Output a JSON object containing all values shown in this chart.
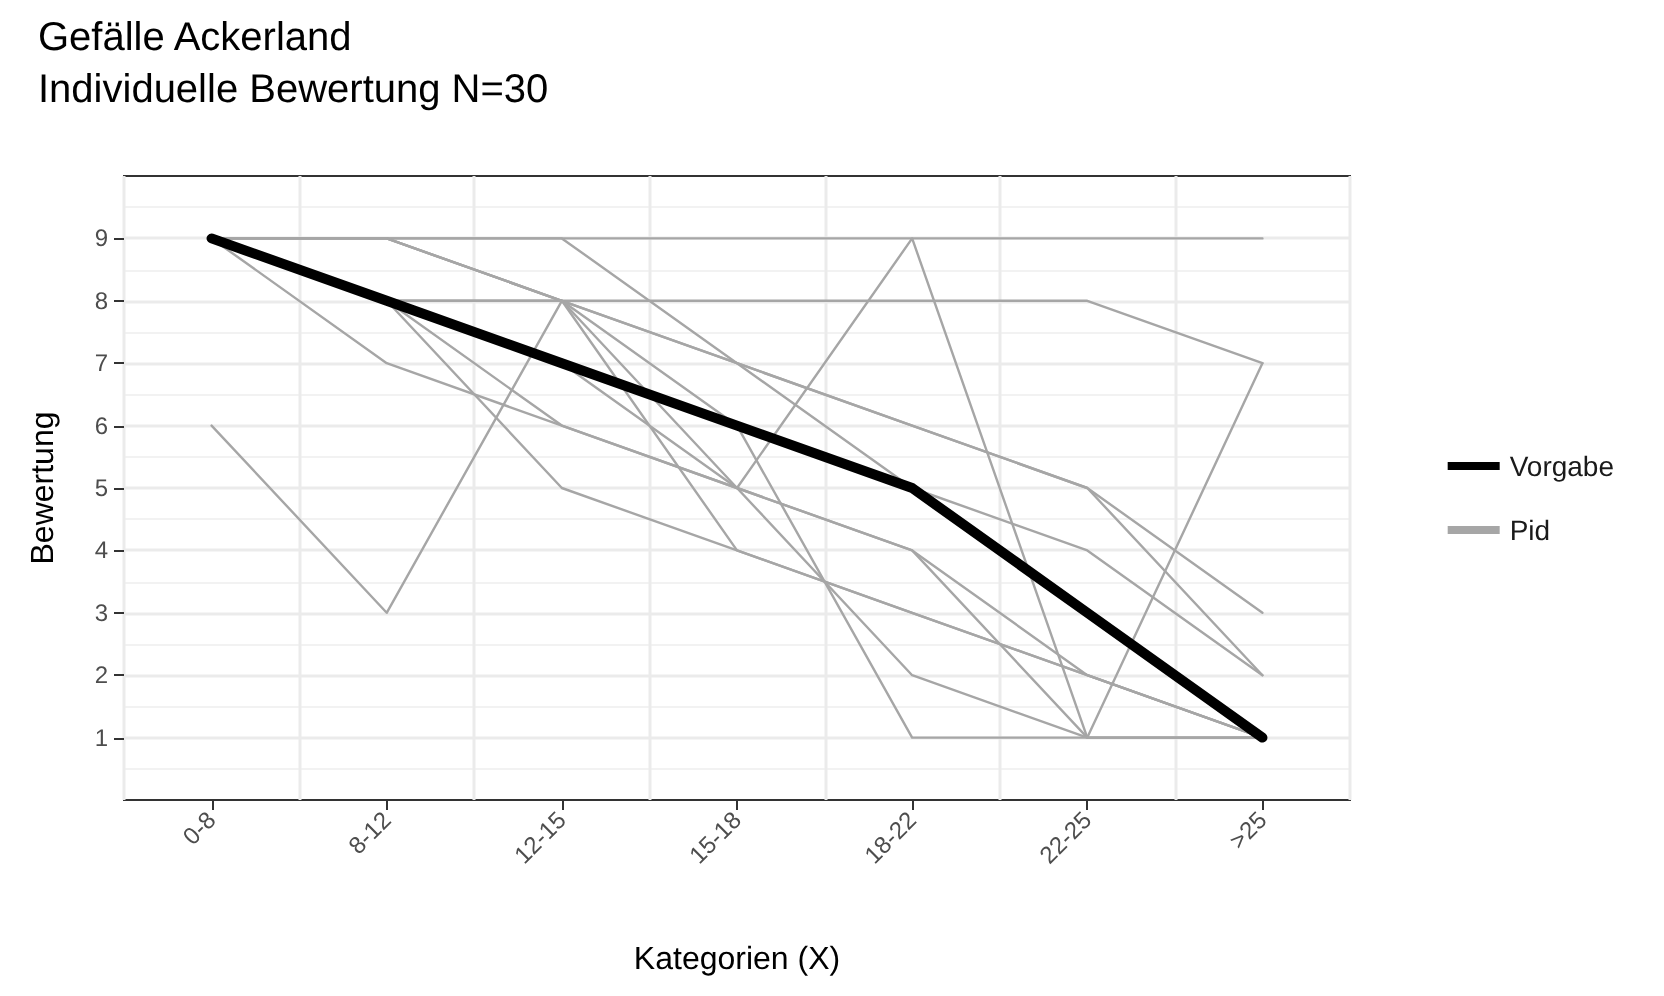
{
  "chart_data": {
    "type": "line",
    "title": "Gefälle Ackerland",
    "subtitle": "Individuelle Bewertung N=30",
    "xlabel": "Kategorien (X)",
    "ylabel": "Bewertung",
    "categories": [
      "0-8",
      "8-12",
      "12-15",
      "15-18",
      "18-22",
      "22-25",
      ">25"
    ],
    "ylim": [
      0,
      10
    ],
    "yticks": [
      1,
      2,
      3,
      4,
      5,
      6,
      7,
      8,
      9
    ],
    "grid": true,
    "legend": "right",
    "series": [
      {
        "name": "Pid",
        "color": "#a6a6a6",
        "values": [
          9,
          9,
          9,
          9,
          9,
          9,
          9
        ]
      },
      {
        "color": "#a6a6a6",
        "values": [
          9,
          9,
          8,
          8,
          8,
          8,
          7
        ]
      },
      {
        "color": "#a6a6a6",
        "values": [
          9,
          9,
          9,
          7,
          6,
          5,
          3
        ]
      },
      {
        "color": "#a6a6a6",
        "values": [
          9,
          8,
          8,
          7,
          5,
          4,
          2
        ]
      },
      {
        "color": "#a6a6a6",
        "values": [
          9,
          7,
          6,
          5,
          4,
          2,
          1
        ]
      },
      {
        "color": "#a6a6a6",
        "values": [
          6,
          3,
          8,
          7,
          6,
          5,
          2
        ]
      },
      {
        "color": "#a6a6a6",
        "values": [
          9,
          8,
          5,
          4,
          3,
          2,
          1
        ]
      },
      {
        "color": "#a6a6a6",
        "values": [
          9,
          9,
          8,
          5,
          9,
          1,
          1
        ]
      },
      {
        "color": "#a6a6a6",
        "values": [
          9,
          8,
          6,
          5,
          4,
          1,
          7
        ]
      },
      {
        "color": "#a6a6a6",
        "values": [
          9,
          8,
          8,
          4,
          3,
          2,
          1
        ]
      },
      {
        "color": "#a6a6a6",
        "values": [
          9,
          8,
          7,
          5,
          2,
          1,
          1
        ]
      },
      {
        "color": "#a6a6a6",
        "values": [
          9,
          9,
          8,
          6,
          1,
          1,
          1
        ]
      },
      {
        "name": "Vorgabe",
        "color": "#000000",
        "values": [
          9,
          8,
          7,
          6,
          5,
          3,
          1
        ]
      }
    ]
  }
}
